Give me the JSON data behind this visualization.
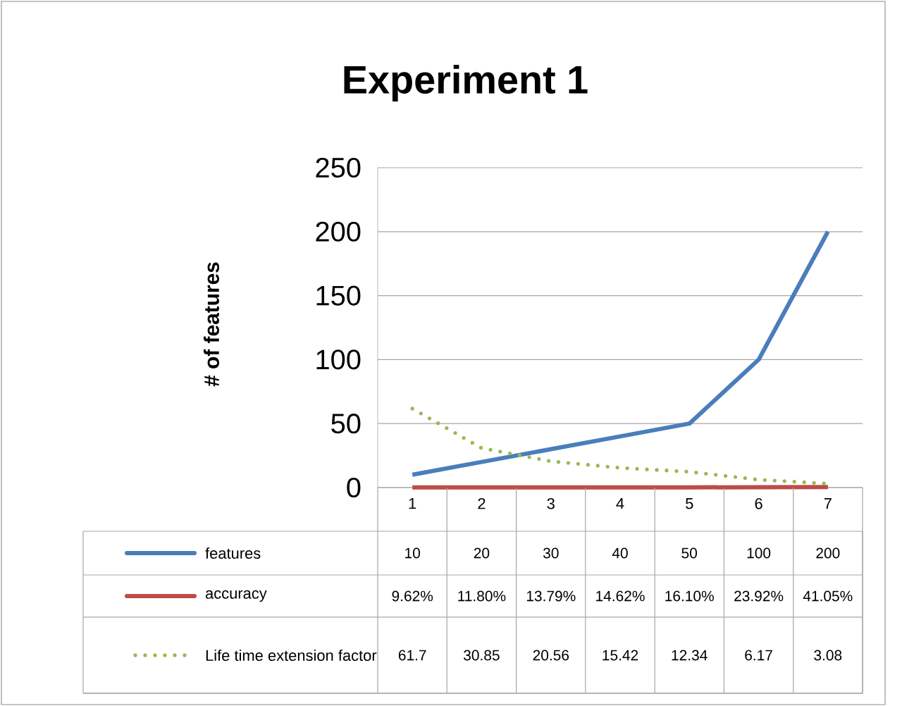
{
  "chart_data": {
    "type": "line",
    "title": "Experiment 1",
    "ylabel": "# of features",
    "categories": [
      "1",
      "2",
      "3",
      "4",
      "5",
      "6",
      "7"
    ],
    "series": [
      {
        "name": "features",
        "color": "#4a7ebb",
        "line_style": "solid",
        "values": [
          10,
          20,
          30,
          40,
          50,
          100,
          200
        ],
        "value_labels": [
          "10",
          "20",
          "30",
          "40",
          "50",
          "100",
          "200"
        ]
      },
      {
        "name": "accuracy",
        "color": "#be4b48",
        "line_style": "solid",
        "values": [
          0.0962,
          0.118,
          0.1379,
          0.1462,
          0.161,
          0.2392,
          0.4105
        ],
        "value_labels": [
          "9.62%",
          "11.80%",
          "13.79%",
          "14.62%",
          "16.10%",
          "23.92%",
          "41.05%"
        ]
      },
      {
        "name": "Life time extension factor",
        "color": "#98b954",
        "line_style": "dotted",
        "values": [
          61.7,
          30.85,
          20.56,
          15.42,
          12.34,
          6.17,
          3.08
        ],
        "value_labels": [
          "61.7",
          "30.85",
          "20.56",
          "15.42",
          "12.34",
          "6.17",
          "3.08"
        ]
      }
    ],
    "ylim": [
      0,
      250
    ],
    "yticks": [
      0,
      50,
      100,
      150,
      200,
      250
    ],
    "grid": "y",
    "legend": "bottom",
    "marker": "none"
  }
}
